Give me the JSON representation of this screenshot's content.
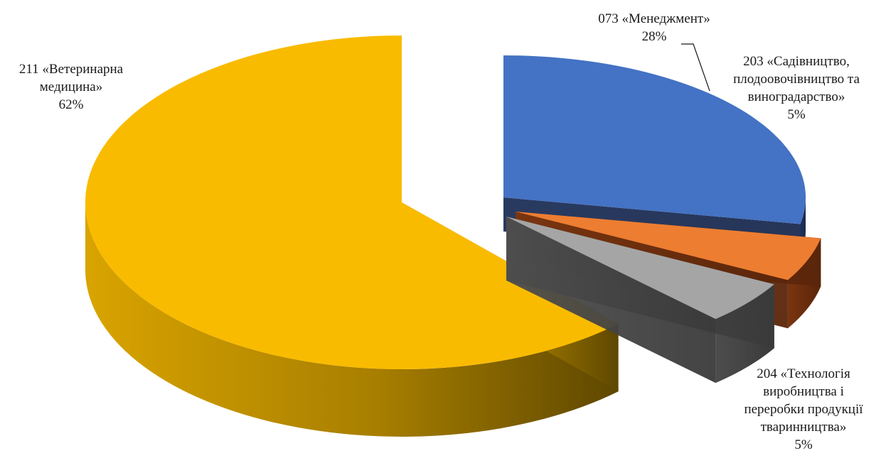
{
  "chart_data": {
    "type": "pie",
    "title": "",
    "style": "3d-exploded",
    "legend": "none",
    "slices": [
      {
        "name": "211 «Ветеринарна медицина»",
        "label_lines": [
          "211 «Ветеринарна",
          "медицина»"
        ],
        "value": 62,
        "value_label": "62%",
        "color": "#F9BB00"
      },
      {
        "name": "073 «Менеджмент»",
        "label_lines": [
          "073 «Менеджмент»"
        ],
        "value": 28,
        "value_label": "28%",
        "color": "#4472C4"
      },
      {
        "name": "203 «Садівництво, плодоовочівництво та виноградарство»",
        "label_lines": [
          "203 «Садівництво,",
          "плодоовочівництво та",
          "виноградарство»"
        ],
        "value": 5,
        "value_label": "5%",
        "color": "#ED7D31"
      },
      {
        "name": "204 «Технологія виробництва і переробки продукції тваринництва»",
        "label_lines": [
          "204 «Технологія",
          "виробництва і",
          "переробки продукції",
          "тваринництва»"
        ],
        "value": 5,
        "value_label": "5%",
        "color": "#A5A5A5"
      }
    ]
  }
}
